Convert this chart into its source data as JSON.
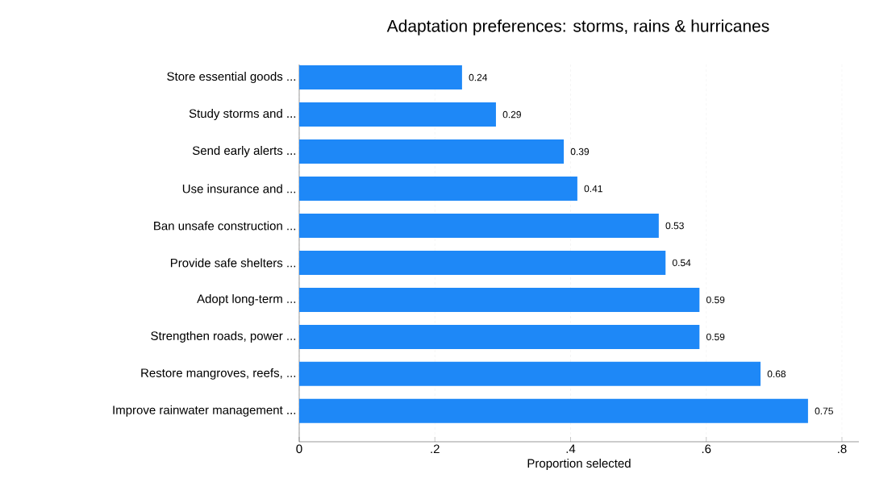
{
  "chart_data": {
    "type": "bar",
    "orientation": "horizontal",
    "title": "Adaptation preferences: storms, rains & hurricanes",
    "xlabel": "Proportion selected",
    "categories": [
      "Store essential goods ...",
      "Study storms and ...",
      "Send early alerts ...",
      "Use insurance and ...",
      "Ban unsafe construction ...",
      "Provide safe shelters ...",
      "Adopt long-term ...",
      "Strengthen roads, power ...",
      "Restore mangroves, reefs, ...",
      "Improve rainwater management ..."
    ],
    "values": [
      0.24,
      0.29,
      0.39,
      0.41,
      0.53,
      0.54,
      0.59,
      0.59,
      0.68,
      0.75
    ],
    "color": "#1e88f7",
    "data_labels": true,
    "grid": "x",
    "xlim": [
      0,
      0.825
    ],
    "xticks": [
      0,
      {
        "value": 0.2,
        "label": ".2"
      },
      {
        "value": 0.4,
        "label": ".4"
      },
      {
        "value": 0.6,
        "label": ".6"
      },
      {
        "value": 0.8,
        "label": ".8"
      }
    ]
  }
}
